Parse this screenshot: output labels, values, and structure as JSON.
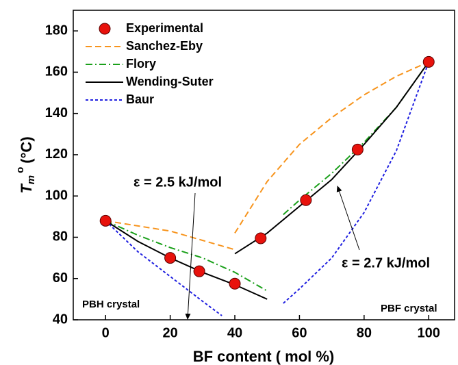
{
  "chart_data": {
    "type": "line",
    "x_label": "BF content ( mol %)",
    "y_label": {
      "base": "T",
      "sub": "m",
      "sup": "o",
      "unit": "(°C)"
    },
    "xlim": [
      -10,
      108
    ],
    "ylim": [
      40,
      190
    ],
    "xticks": [
      0,
      20,
      40,
      60,
      80,
      100
    ],
    "yticks": [
      40,
      60,
      80,
      100,
      120,
      140,
      160,
      180
    ],
    "legend": "upper left",
    "series": [
      {
        "name": "Experimental",
        "kind": "scatter",
        "color": "#e8120c",
        "x": [
          0,
          20,
          29,
          40,
          48,
          62,
          78,
          100
        ],
        "values": [
          88,
          70,
          63.5,
          57.5,
          79.5,
          98,
          122.5,
          165
        ]
      },
      {
        "name": "Sanchez-Eby",
        "kind": "line",
        "dash": "dashed",
        "color": "#f7941d",
        "x": [
          0,
          10,
          20,
          30,
          40,
          null,
          40,
          50,
          60,
          70,
          80,
          90,
          100
        ],
        "values": [
          88,
          85.5,
          83,
          78.5,
          74,
          null,
          82,
          107,
          125,
          138,
          149,
          158,
          165
        ]
      },
      {
        "name": "Flory",
        "kind": "line",
        "dash": "dash-dot",
        "color": "#1aa01a",
        "x": [
          0,
          10,
          20,
          30,
          40,
          50,
          null,
          55,
          60,
          70,
          80,
          90,
          100
        ],
        "values": [
          88,
          81,
          75,
          70,
          63,
          54,
          null,
          91,
          98,
          111,
          126,
          143,
          165
        ]
      },
      {
        "name": "Wending-Suter",
        "kind": "line",
        "dash": "solid",
        "color": "#000000",
        "x": [
          0,
          10,
          20,
          30,
          40,
          50,
          null,
          40,
          50,
          60,
          70,
          80,
          90,
          100
        ],
        "values": [
          88,
          78,
          70,
          63,
          57,
          50,
          null,
          72,
          82,
          95,
          108,
          125,
          143,
          165
        ]
      },
      {
        "name": "Baur",
        "kind": "line",
        "dash": "dotted",
        "color": "#1f1fe0",
        "x": [
          0,
          10,
          20,
          30,
          36,
          null,
          55,
          60,
          70,
          80,
          90,
          100
        ],
        "values": [
          88,
          73,
          61,
          49,
          42,
          null,
          48,
          55,
          70,
          92,
          122,
          165
        ]
      }
    ],
    "annotations": [
      "ε = 2.5 kJ/mol",
      "ε = 2.7 kJ/mol",
      "PBH crystal",
      "PBF crystal"
    ]
  }
}
